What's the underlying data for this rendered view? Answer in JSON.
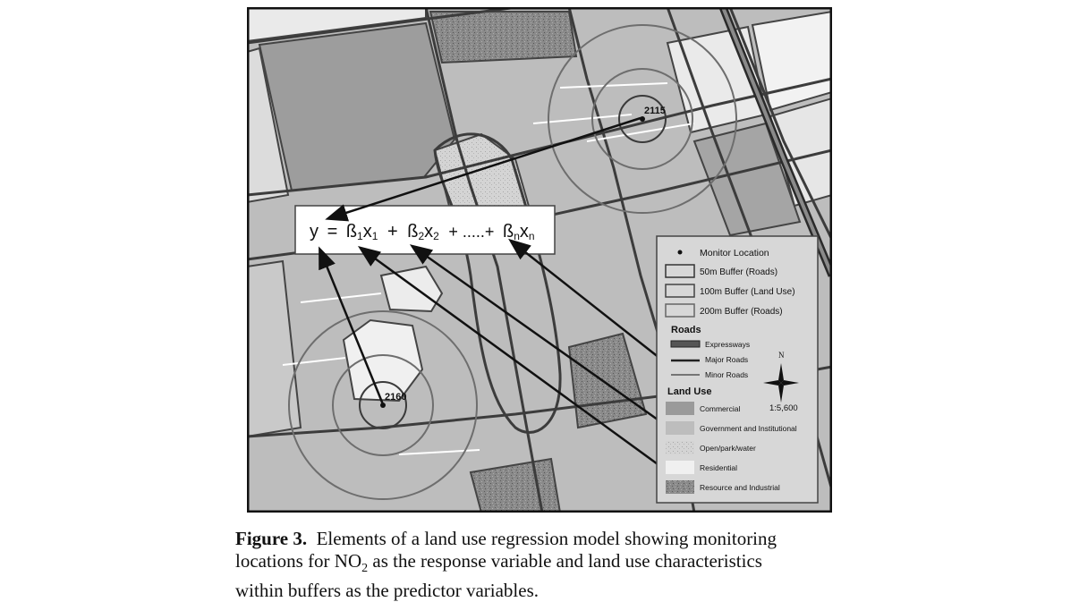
{
  "map": {
    "equation": {
      "y": "y",
      "eq": "=",
      "b1": "ß",
      "sub1": "1",
      "x1": "x",
      "xsub1": "1",
      "plus1": "+",
      "b2": "ß",
      "sub2": "2",
      "x2": "x",
      "xsub2": "2",
      "plus2": "+ .....+",
      "bn": "ß",
      "subn": "n",
      "xn": "x",
      "xsubn": "n"
    },
    "monitors": [
      {
        "id": "2115"
      },
      {
        "id": "2160"
      }
    ],
    "legend": {
      "monitor_location": "Monitor Location",
      "buffers": [
        "50m Buffer (Roads)",
        "100m Buffer (Land Use)",
        "200m Buffer (Roads)"
      ],
      "roads_title": "Roads",
      "roads": [
        "Expressways",
        "Major Roads",
        "Minor Roads"
      ],
      "north_label": "N",
      "land_use_title": "Land  Use",
      "scale": "1:5,600",
      "land_use": [
        "Commercial",
        "Government and Institutional",
        "Open/park/water",
        "Residential",
        "Resource and Industrial"
      ]
    },
    "colors": {
      "commercial": "#9a9a9a",
      "government": "#bdbdbd",
      "open_park": "#d4d4d4",
      "residential": "#ececec",
      "resource_industrial": "#7e7e7e",
      "road": "#4a4a4a"
    }
  },
  "caption": {
    "label": "Figure 3.",
    "line1": "Elements of a land use regression model showing monitoring",
    "line2a": "locations for NO",
    "line2sub": "2",
    "line2b": " as the response variable and land use characteristics",
    "line3": "within buffers as the predictor variables."
  }
}
